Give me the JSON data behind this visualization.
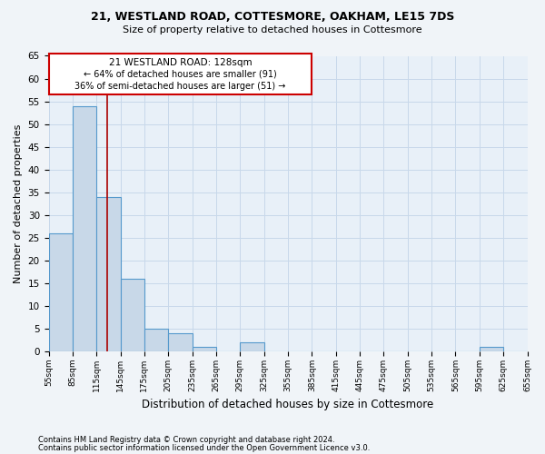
{
  "title1": "21, WESTLAND ROAD, COTTESMORE, OAKHAM, LE15 7DS",
  "title2": "Size of property relative to detached houses in Cottesmore",
  "xlabel": "Distribution of detached houses by size in Cottesmore",
  "ylabel": "Number of detached properties",
  "footnote1": "Contains HM Land Registry data © Crown copyright and database right 2024.",
  "footnote2": "Contains public sector information licensed under the Open Government Licence v3.0.",
  "annotation_line1": "21 WESTLAND ROAD: 128sqm",
  "annotation_line2": "← 64% of detached houses are smaller (91)",
  "annotation_line3": "36% of semi-detached houses are larger (51) →",
  "bar_values": [
    26,
    54,
    34,
    16,
    5,
    4,
    1,
    0,
    2,
    0,
    0,
    0,
    0,
    0,
    0,
    0,
    0,
    0,
    1,
    0
  ],
  "bin_labels": [
    "55sqm",
    "85sqm",
    "115sqm",
    "145sqm",
    "175sqm",
    "205sqm",
    "235sqm",
    "265sqm",
    "295sqm",
    "325sqm",
    "355sqm",
    "385sqm",
    "415sqm",
    "445sqm",
    "475sqm",
    "505sqm",
    "535sqm",
    "565sqm",
    "595sqm",
    "625sqm",
    "655sqm"
  ],
  "bar_color": "#c8d8e8",
  "bar_edge_color": "#5599cc",
  "vline_x": 128,
  "vline_color": "#aa0000",
  "annotation_box_color": "#cc0000",
  "ylim": [
    0,
    65
  ],
  "yticks": [
    0,
    5,
    10,
    15,
    20,
    25,
    30,
    35,
    40,
    45,
    50,
    55,
    60,
    65
  ],
  "grid_color": "#c8d8ea",
  "bg_color": "#e8f0f8",
  "fig_bg_color": "#f0f4f8"
}
